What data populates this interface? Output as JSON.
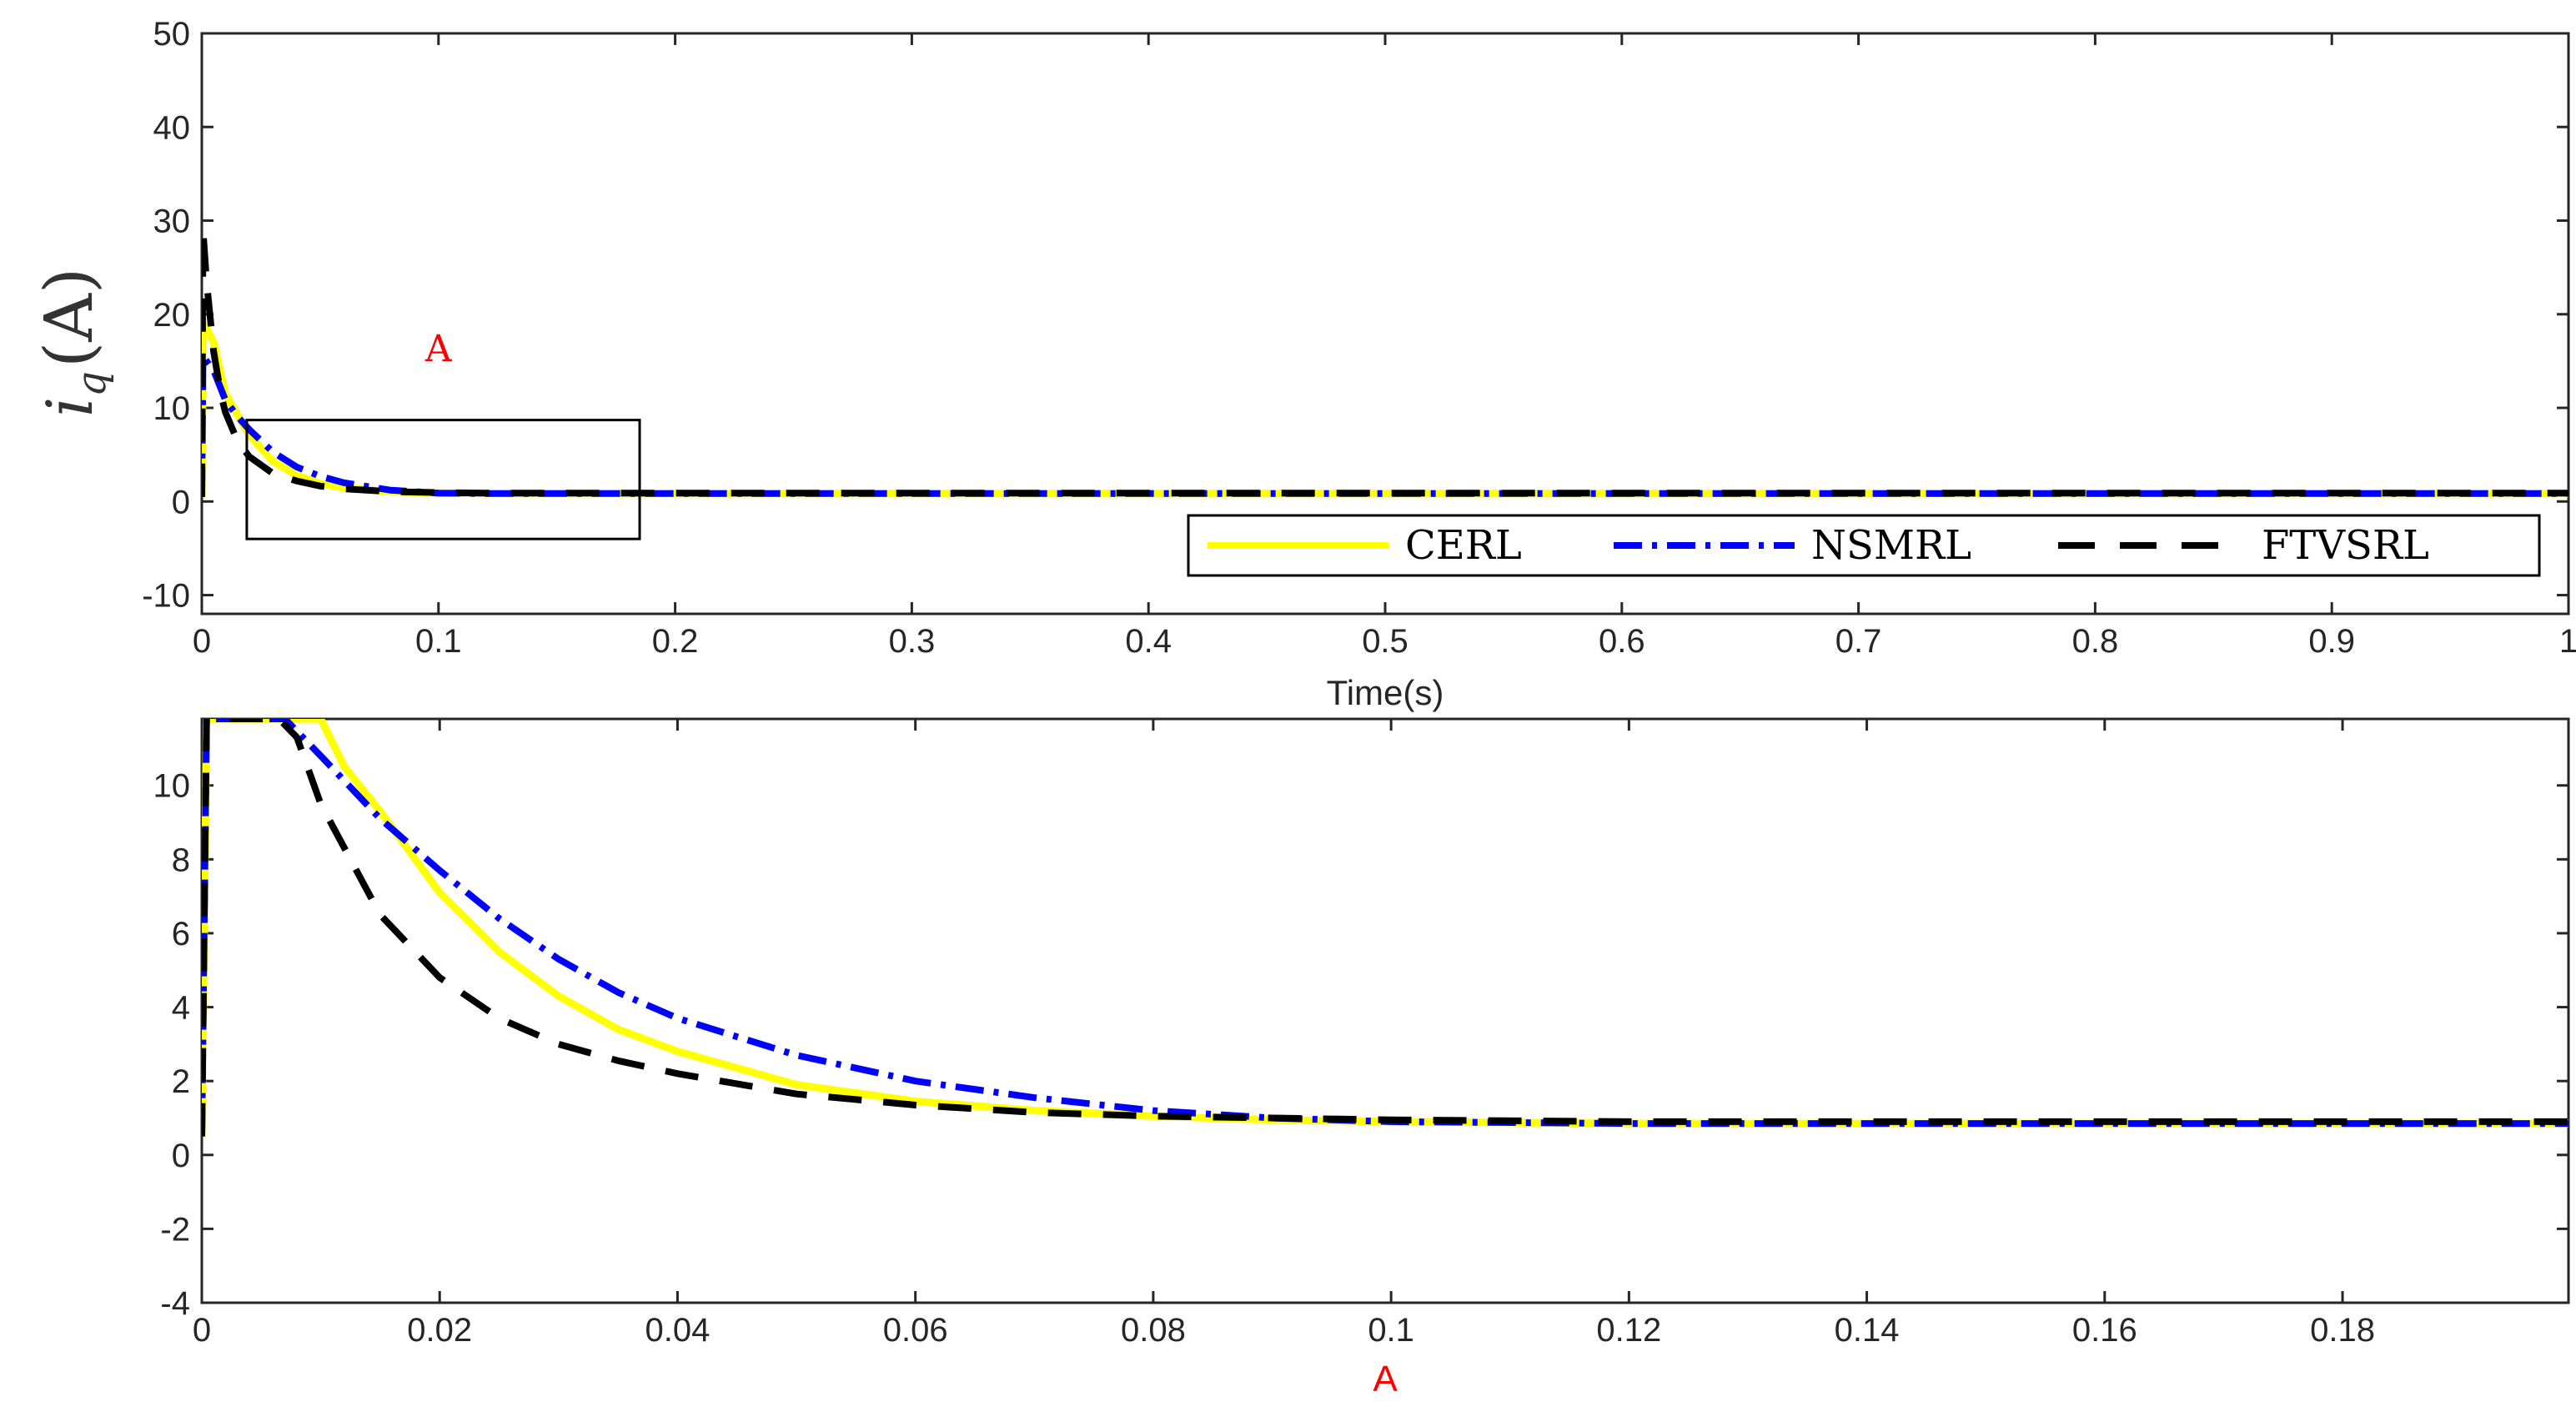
{
  "chart_data": [
    {
      "type": "line",
      "title": "",
      "xlabel": "Time(s)",
      "ylabel": {
        "symbol": "i",
        "subscript": "q",
        "unit": "(A)"
      },
      "xlim": [
        0,
        1
      ],
      "ylim": [
        -12,
        50
      ],
      "x_ticks": [
        "0",
        "0.1",
        "0.2",
        "0.3",
        "0.4",
        "0.5",
        "0.6",
        "0.7",
        "0.8",
        "0.9",
        "1"
      ],
      "y_ticks": [
        "-10",
        "0",
        "10",
        "20",
        "30",
        "40",
        "50"
      ],
      "annotation": {
        "text": "A",
        "x": 0.1,
        "y": 15
      },
      "zoom_box": {
        "x": [
          0.019,
          0.185
        ],
        "y": [
          -4,
          8.7
        ]
      },
      "legend": {
        "placement": "bottom-right",
        "entries": [
          "CERL",
          "NSMRL",
          "FTVSRL"
        ]
      },
      "series": [
        {
          "name": "CERL",
          "color": "#ffff00",
          "style": "solid",
          "x": [
            0,
            0.0005,
            0.002,
            0.005,
            0.01,
            0.015,
            0.02,
            0.03,
            0.04,
            0.05,
            0.06,
            0.08,
            0.1,
            0.12,
            0.15,
            0.2,
            0.3,
            0.5,
            0.7,
            1.0
          ],
          "y": [
            0.5,
            19,
            18.5,
            17,
            11.5,
            9.3,
            7.1,
            4.3,
            2.8,
            1.9,
            1.45,
            1.05,
            0.9,
            0.85,
            0.85,
            0.85,
            0.85,
            0.85,
            0.85,
            0.85
          ]
        },
        {
          "name": "NSMRL",
          "color": "#0000ff",
          "style": "dashdot",
          "x": [
            0,
            0.0005,
            0.002,
            0.005,
            0.01,
            0.015,
            0.02,
            0.03,
            0.04,
            0.05,
            0.06,
            0.08,
            0.1,
            0.12,
            0.15,
            0.2,
            0.3,
            0.5,
            0.7,
            1.0
          ],
          "y": [
            0.5,
            15.5,
            15,
            14,
            10.8,
            9.1,
            7.7,
            5.3,
            3.7,
            2.7,
            2.0,
            1.2,
            0.9,
            0.85,
            0.85,
            0.85,
            0.85,
            0.85,
            0.85,
            0.85
          ]
        },
        {
          "name": "FTVSRL",
          "color": "#000000",
          "style": "dashed",
          "x": [
            0,
            0.0005,
            0.002,
            0.005,
            0.008,
            0.01,
            0.015,
            0.02,
            0.03,
            0.04,
            0.05,
            0.06,
            0.08,
            0.1,
            0.12,
            0.15,
            0.2,
            0.3,
            0.5,
            0.7,
            1.0
          ],
          "y": [
            0.5,
            29,
            23.5,
            16,
            11.5,
            9.5,
            6.5,
            4.8,
            3.0,
            2.2,
            1.65,
            1.35,
            1.05,
            0.95,
            0.9,
            0.9,
            0.9,
            0.9,
            0.9,
            0.9,
            0.9
          ]
        }
      ]
    },
    {
      "type": "line",
      "title": "",
      "xlabel": "A",
      "ylabel": "",
      "xlim": [
        0,
        0.199
      ],
      "ylim": [
        -4,
        11.8
      ],
      "x_ticks": [
        "0",
        "0.02",
        "0.04",
        "0.06",
        "0.08",
        "0.1",
        "0.12",
        "0.14",
        "0.16",
        "0.18"
      ],
      "y_ticks": [
        "-4",
        "-2",
        "0",
        "2",
        "4",
        "6",
        "8",
        "10"
      ],
      "series": [
        {
          "name": "CERL",
          "color": "#ffff00",
          "style": "solid",
          "x": [
            0,
            0.0004,
            0.01,
            0.012,
            0.015,
            0.02,
            0.025,
            0.03,
            0.035,
            0.04,
            0.05,
            0.06,
            0.07,
            0.08,
            0.09,
            0.1,
            0.12,
            0.14,
            0.16,
            0.18,
            0.199
          ],
          "y": [
            0.5,
            11.8,
            11.8,
            10.5,
            9.3,
            7.1,
            5.5,
            4.3,
            3.4,
            2.8,
            1.9,
            1.45,
            1.2,
            1.05,
            0.95,
            0.9,
            0.85,
            0.85,
            0.85,
            0.85,
            0.85
          ]
        },
        {
          "name": "NSMRL",
          "color": "#0000ff",
          "style": "dashdot",
          "x": [
            0,
            0.0004,
            0.007,
            0.01,
            0.015,
            0.02,
            0.025,
            0.03,
            0.035,
            0.04,
            0.05,
            0.06,
            0.07,
            0.08,
            0.09,
            0.1,
            0.12,
            0.14,
            0.16,
            0.18,
            0.199
          ],
          "y": [
            0.5,
            11.8,
            11.8,
            10.8,
            9.1,
            7.7,
            6.4,
            5.3,
            4.4,
            3.7,
            2.7,
            2.0,
            1.55,
            1.2,
            1.0,
            0.9,
            0.85,
            0.85,
            0.85,
            0.85,
            0.85
          ]
        },
        {
          "name": "FTVSRL",
          "color": "#000000",
          "style": "dashed",
          "x": [
            0,
            0.0004,
            0.0065,
            0.008,
            0.01,
            0.015,
            0.02,
            0.025,
            0.03,
            0.035,
            0.04,
            0.05,
            0.06,
            0.07,
            0.08,
            0.09,
            0.1,
            0.12,
            0.14,
            0.16,
            0.18,
            0.199
          ],
          "y": [
            0.5,
            11.8,
            11.8,
            11.3,
            9.5,
            6.5,
            4.8,
            3.7,
            3.0,
            2.55,
            2.2,
            1.65,
            1.35,
            1.15,
            1.05,
            1.0,
            0.95,
            0.9,
            0.9,
            0.9,
            0.9,
            0.9
          ]
        }
      ]
    }
  ]
}
